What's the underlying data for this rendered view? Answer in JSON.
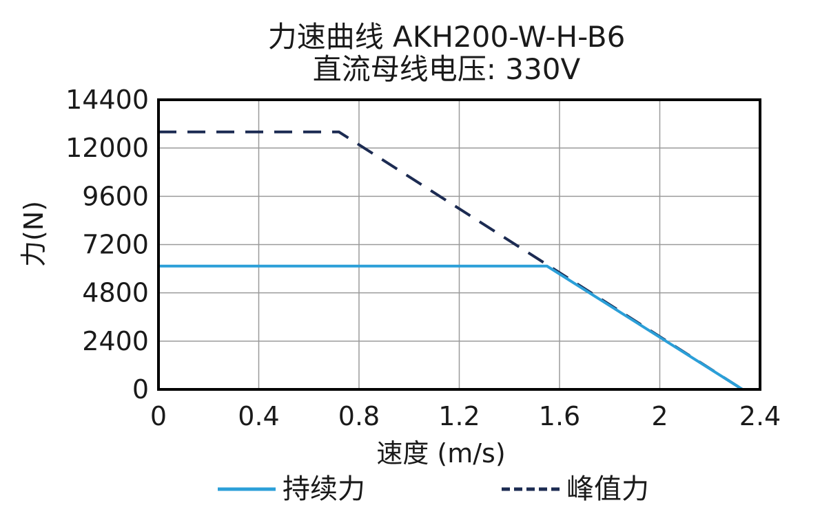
{
  "chart_data": {
    "type": "line",
    "title": "力速曲线 AKH200-W-H-B6",
    "subtitle": "直流母线电压: 330V",
    "xlabel": "速度 (m/s)",
    "ylabel": "力(N)",
    "xlim": [
      0,
      2.4
    ],
    "ylim": [
      0,
      14400
    ],
    "xticks": [
      0,
      0.4,
      0.8,
      1.2,
      1.6,
      2,
      2.4
    ],
    "xtick_labels": [
      "0",
      "0.4",
      "0.8",
      "1.2",
      "1.6",
      "2",
      "2.4"
    ],
    "yticks": [
      0,
      2400,
      4800,
      7200,
      9600,
      12000,
      14400
    ],
    "ytick_labels": [
      "0",
      "2400",
      "4800",
      "7200",
      "9600",
      "12000",
      "14400"
    ],
    "grid": true,
    "legend_position": "bottom",
    "series": [
      {
        "name": "持续力",
        "color": "#2b9fd8",
        "style": "solid",
        "x": [
          0,
          1.55,
          2.33
        ],
        "y": [
          6130,
          6130,
          0
        ]
      },
      {
        "name": "峰值力",
        "color": "#1c2b52",
        "style": "dashed",
        "x": [
          0,
          0.72,
          2.33
        ],
        "y": [
          12800,
          12800,
          0
        ]
      }
    ]
  }
}
